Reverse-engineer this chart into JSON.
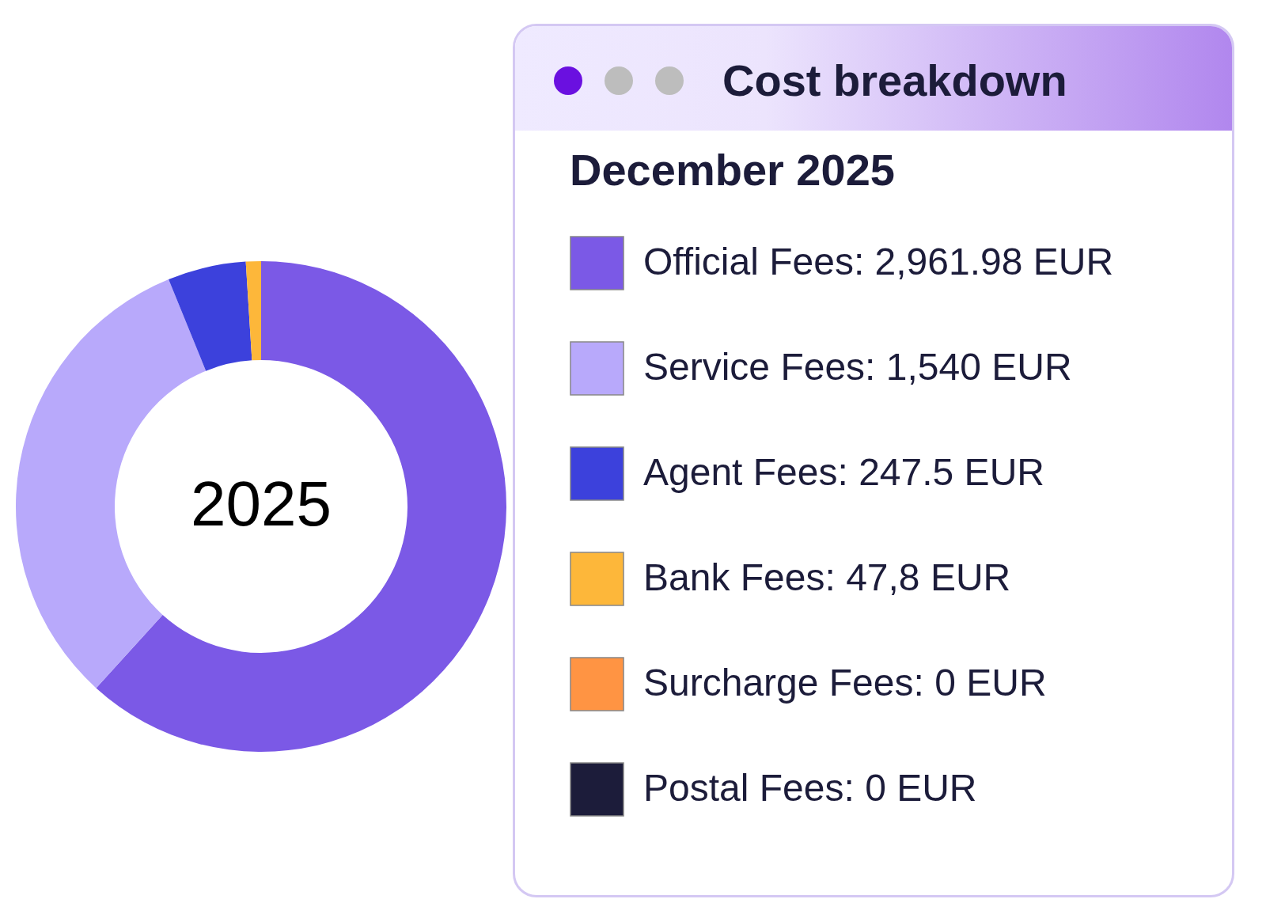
{
  "chart_data": {
    "type": "donut",
    "title": "Cost breakdown",
    "legend_title": "December 2025",
    "legend": "right",
    "categories": [
      "Official Fees: 2,961.98 EUR",
      "Service Fees: 1,540 EUR",
      "Agent Fees: 247.5 EUR",
      "Bank Fees: 47,8 EUR",
      "Surcharge Fees: 0 EUR",
      "Postal Fees: 0 EUR"
    ],
    "values": [
      2961.98,
      1540,
      247.5,
      47.8,
      0,
      0
    ],
    "colors": [
      "#7b59e6",
      "#b8a9fb",
      "#3c41dc",
      "#fdb73a",
      "#ff9443",
      "#1c1c3a"
    ],
    "annotations": [
      "2025"
    ]
  }
}
